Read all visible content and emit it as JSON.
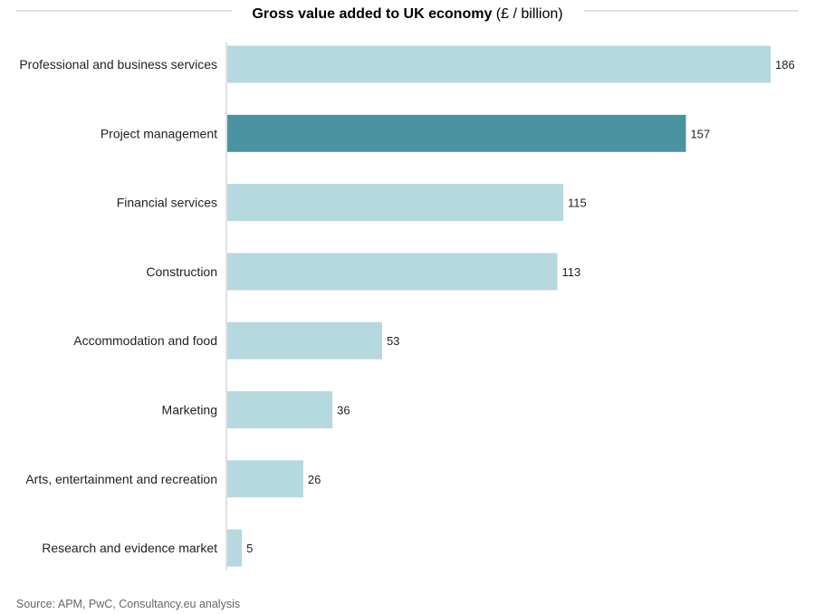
{
  "chart_data": {
    "type": "bar",
    "orientation": "horizontal",
    "title": "Gross value added to UK economy",
    "title_unit": "(£ / billion)",
    "categories": [
      "Professional and business services",
      "Project management",
      "Financial services",
      "Construction",
      "Accommodation and food",
      "Marketing",
      "Arts, entertainment and recreation",
      "Research and evidence market"
    ],
    "values": [
      186,
      157,
      115,
      113,
      53,
      36,
      26,
      5
    ],
    "highlight_index": 1,
    "colors": {
      "bar": "#b6d8df",
      "highlight": "#4b93a0",
      "axis": "#d9d9d9"
    },
    "xlim": [
      0,
      186
    ],
    "grid": false,
    "legend": "none"
  },
  "source": "Source: APM, PwC, Consultancy.eu analysis"
}
